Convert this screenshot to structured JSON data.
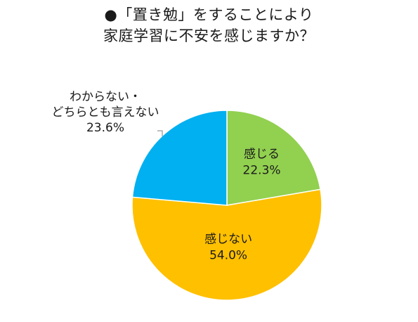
{
  "title": {
    "line1": "●「置き勉」をすることにより",
    "line2": "家庭学習に不安を感じますか？"
  },
  "chart_data": {
    "type": "pie",
    "title": "●「置き勉」をすることにより家庭学習に不安を感じますか？",
    "slices": [
      {
        "label": "感じる",
        "value": 22.3,
        "value_label": "22.3%",
        "color": "#92d050"
      },
      {
        "label": "感じない",
        "value": 54.0,
        "value_label": "54.0%",
        "color": "#ffc000"
      },
      {
        "label_lines": [
          "わからない・",
          "どちらとも言えない"
        ],
        "value": 23.6,
        "value_label": "23.6%",
        "color": "#00b0f0"
      }
    ],
    "start": "12 o'clock",
    "direction": "clockwise"
  }
}
